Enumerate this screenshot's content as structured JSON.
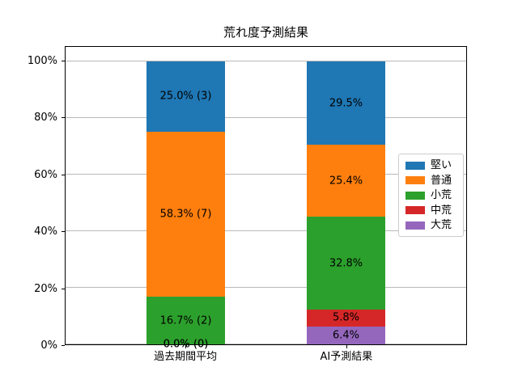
{
  "chart_data": {
    "type": "bar",
    "stacked": true,
    "title": "荒れ度予測結果",
    "categories": [
      "過去期間平均",
      "AI予測結果"
    ],
    "series": [
      {
        "name": "堅い",
        "color": "#1f77b4",
        "values": [
          25.0,
          29.5
        ],
        "labels": [
          "25.0% (3)",
          "29.5%"
        ]
      },
      {
        "name": "普通",
        "color": "#ff7f0e",
        "values": [
          58.3,
          25.4
        ],
        "labels": [
          "58.3% (7)",
          "25.4%"
        ]
      },
      {
        "name": "小荒",
        "color": "#2ca02c",
        "values": [
          16.7,
          32.8
        ],
        "labels": [
          "16.7% (2)",
          "32.8%"
        ]
      },
      {
        "name": "中荒",
        "color": "#d62728",
        "values": [
          0.0,
          5.8
        ],
        "labels": [
          "0.0% (0)",
          "5.8%"
        ]
      },
      {
        "name": "大荒",
        "color": "#9467bd",
        "values": [
          0.0,
          6.4
        ],
        "labels": [
          "0.0% (0)",
          "6.4%"
        ]
      }
    ],
    "xlabel": "",
    "ylabel": "",
    "ylim": [
      0,
      105
    ],
    "yticks": {
      "values": [
        0,
        20,
        40,
        60,
        80,
        100
      ],
      "labels": [
        "0%",
        "20%",
        "40%",
        "60%",
        "80%",
        "100%"
      ]
    },
    "grid": "horizontal",
    "legend_position": "center-right",
    "gridline_color": "#b9b9b9"
  }
}
